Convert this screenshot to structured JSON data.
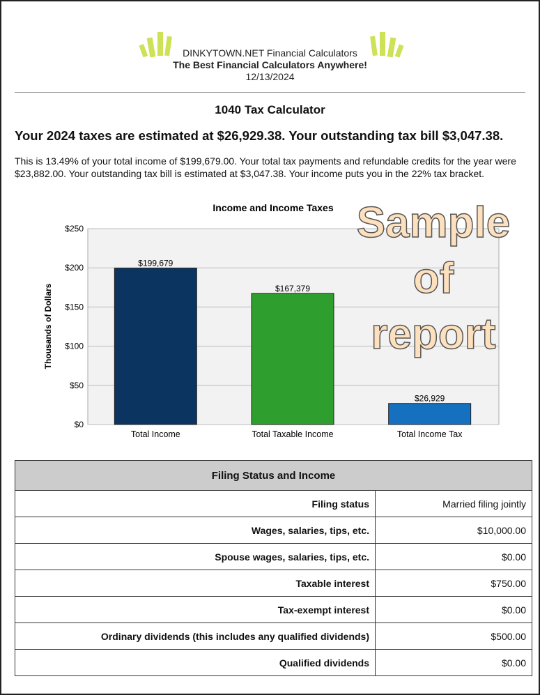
{
  "header": {
    "brand": "DINKYTOWN.NET Financial Calculators",
    "tagline": "The Best Financial Calculators Anywhere!",
    "date": "12/13/2024"
  },
  "title": "1040 Tax Calculator",
  "summary": "Your 2024 taxes are estimated at $26,929.38. Your outstanding tax bill $3,047.38.",
  "paragraph": "This is 13.49% of your total income of $199,679.00. Your total tax payments and refundable credits for the year were $23,882.00. Your outstanding tax bill is estimated at $3,047.38. Your income puts you in the 22% tax bracket.",
  "watermark": [
    "Sample",
    "of",
    "report"
  ],
  "chart_data": {
    "type": "bar",
    "title": "Income and Income Taxes",
    "ylabel": "Thousands of Dollars",
    "xlabel": "",
    "ylim": [
      0,
      250
    ],
    "yticks": [
      "$0",
      "$50",
      "$100",
      "$150",
      "$200",
      "$250"
    ],
    "categories": [
      "Total Income",
      "Total Taxable Income",
      "Total Income Tax"
    ],
    "values": [
      199.679,
      167.379,
      26.929
    ],
    "labels": [
      "$199,679",
      "$167,379",
      "$26,929"
    ],
    "colors": [
      "#0b3560",
      "#2e9e2e",
      "#1570c0"
    ],
    "grid": true
  },
  "table": {
    "heading": "Filing Status and Income",
    "rows": [
      {
        "label": "Filing status",
        "value": "Married filing jointly"
      },
      {
        "label": "Wages, salaries, tips, etc.",
        "value": "$10,000.00"
      },
      {
        "label": "Spouse wages, salaries, tips, etc.",
        "value": "$0.00"
      },
      {
        "label": "Taxable interest",
        "value": "$750.00"
      },
      {
        "label": "Tax-exempt interest",
        "value": "$0.00"
      },
      {
        "label": "Ordinary dividends (this includes any qualified dividends)",
        "value": "$500.00"
      },
      {
        "label": "Qualified dividends",
        "value": "$0.00"
      }
    ]
  }
}
